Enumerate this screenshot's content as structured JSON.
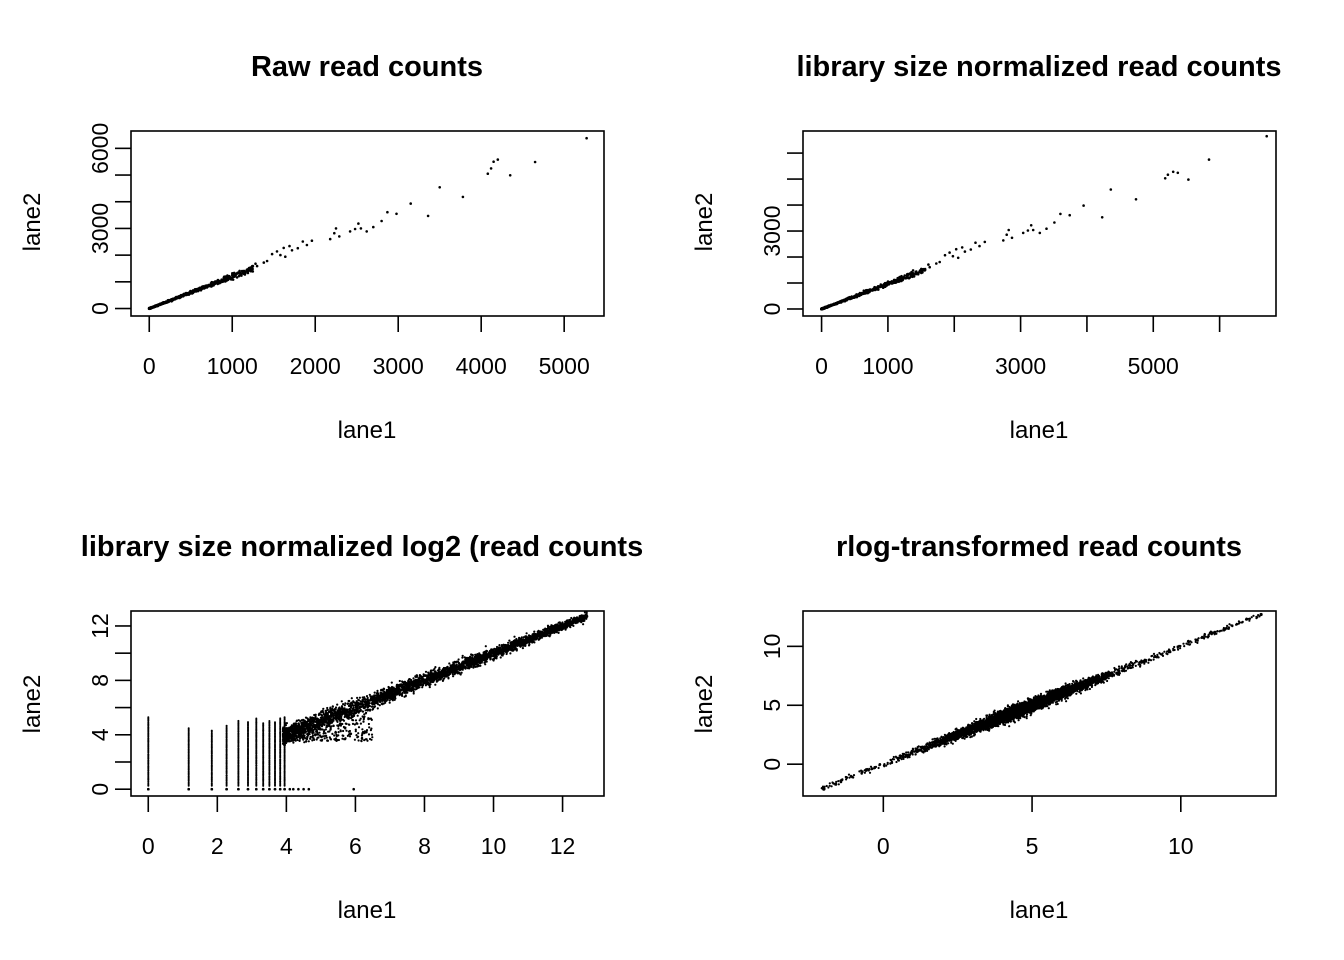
{
  "chart_data": [
    {
      "type": "scatter",
      "title": "Raw read counts",
      "xlabel": "lane1",
      "ylabel": "lane2",
      "xlim": [
        -220,
        5480
      ],
      "ylim": [
        -280,
        6650
      ],
      "x_ticks": [
        0,
        1000,
        2000,
        3000,
        4000,
        5000
      ],
      "x_tick_labels": [
        "0",
        "1000",
        "2000",
        "3000",
        "4000",
        "5000"
      ],
      "y_ticks": [
        0,
        1000,
        2000,
        3000,
        4000,
        5000,
        6000
      ],
      "y_tick_labels": [
        "0",
        "",
        "",
        "3000",
        "",
        "",
        "6000"
      ],
      "points": [
        [
          5270,
          6380
        ],
        [
          4650,
          5490
        ],
        [
          4350,
          4990
        ],
        [
          4200,
          5580
        ],
        [
          4150,
          5500
        ],
        [
          4120,
          5250
        ],
        [
          4080,
          5050
        ],
        [
          3780,
          4180
        ],
        [
          3500,
          4540
        ],
        [
          3360,
          3470
        ],
        [
          3150,
          3930
        ],
        [
          2980,
          3550
        ],
        [
          2870,
          3610
        ],
        [
          2800,
          3280
        ],
        [
          2700,
          3050
        ],
        [
          2620,
          2890
        ],
        [
          2550,
          3000
        ],
        [
          2520,
          3180
        ],
        [
          2480,
          2980
        ],
        [
          2420,
          2890
        ],
        [
          2290,
          2700
        ],
        [
          2250,
          3000
        ],
        [
          2230,
          2820
        ],
        [
          2180,
          2600
        ],
        [
          1960,
          2540
        ],
        [
          1900,
          2380
        ],
        [
          1850,
          2510
        ],
        [
          1790,
          2260
        ],
        [
          1720,
          2180
        ],
        [
          1690,
          2340
        ],
        [
          1640,
          1940
        ],
        [
          1620,
          2270
        ],
        [
          1580,
          2000
        ],
        [
          1540,
          2140
        ],
        [
          1480,
          2040
        ],
        [
          1420,
          1780
        ],
        [
          1380,
          1720
        ],
        [
          1300,
          1590
        ],
        [
          1280,
          1680
        ],
        [
          1240,
          1480
        ]
      ],
      "dense_band": {
        "x_max": 1250,
        "slope": 1.2,
        "spread": 0.06,
        "count": 700
      }
    },
    {
      "type": "scatter",
      "title": "library size normalized read counts",
      "xlabel": "lane1",
      "ylabel": "lane2",
      "xlim": [
        -280,
        6850
      ],
      "ylim": [
        -270,
        6850
      ],
      "x_ticks": [
        0,
        1000,
        2000,
        3000,
        4000,
        5000,
        6000
      ],
      "x_tick_labels": [
        "0",
        "1000",
        "",
        "3000",
        "",
        "5000",
        ""
      ],
      "y_ticks": [
        0,
        1000,
        2000,
        3000,
        4000,
        5000,
        6000
      ],
      "y_tick_labels": [
        "0",
        "",
        "",
        "3000",
        "",
        "",
        ""
      ],
      "points": [
        [
          6710,
          6650
        ],
        [
          5840,
          5750
        ],
        [
          5530,
          4980
        ],
        [
          5370,
          5240
        ],
        [
          5300,
          5280
        ],
        [
          5220,
          5170
        ],
        [
          5180,
          5030
        ],
        [
          4740,
          4220
        ],
        [
          4360,
          4600
        ],
        [
          4230,
          3530
        ],
        [
          3950,
          3980
        ],
        [
          3740,
          3610
        ],
        [
          3600,
          3660
        ],
        [
          3510,
          3330
        ],
        [
          3390,
          3090
        ],
        [
          3290,
          2930
        ],
        [
          3190,
          3040
        ],
        [
          3160,
          3220
        ],
        [
          3110,
          3020
        ],
        [
          3040,
          2930
        ],
        [
          2870,
          2740
        ],
        [
          2820,
          3040
        ],
        [
          2790,
          2860
        ],
        [
          2740,
          2640
        ],
        [
          2460,
          2580
        ],
        [
          2380,
          2420
        ],
        [
          2320,
          2550
        ],
        [
          2250,
          2290
        ],
        [
          2160,
          2210
        ],
        [
          2120,
          2370
        ],
        [
          2060,
          1970
        ],
        [
          2030,
          2300
        ],
        [
          1980,
          2030
        ],
        [
          1930,
          2170
        ],
        [
          1860,
          2070
        ],
        [
          1780,
          1810
        ],
        [
          1730,
          1750
        ],
        [
          1630,
          1610
        ],
        [
          1610,
          1710
        ],
        [
          1560,
          1500
        ]
      ],
      "dense_band": {
        "x_max": 1560,
        "slope": 0.97,
        "spread": 0.06,
        "count": 700
      }
    },
    {
      "type": "scatter",
      "title": "library size normalized log2 (read counts",
      "xlabel": "lane1",
      "ylabel": "lane2",
      "xlim": [
        -0.5,
        13.2
      ],
      "ylim": [
        -0.5,
        13.1
      ],
      "x_ticks": [
        0,
        2,
        4,
        6,
        8,
        10,
        12
      ],
      "x_tick_labels": [
        "0",
        "2",
        "4",
        "6",
        "8",
        "10",
        "12"
      ],
      "y_ticks": [
        0,
        2,
        4,
        6,
        8,
        10,
        12
      ],
      "y_tick_labels": [
        "0",
        "",
        "4",
        "",
        "8",
        "",
        "12"
      ],
      "discrete_x": [
        0,
        1.17,
        1.84,
        2.27,
        2.61,
        2.89,
        3.13,
        3.33,
        3.51,
        3.67,
        3.82,
        3.95
      ],
      "column_tops": [
        5.3,
        4.5,
        4.3,
        4.7,
        5.1,
        5.0,
        5.2,
        4.9,
        5.1,
        5.0,
        5.2,
        5.3
      ],
      "zero_row_x": [
        0,
        1.17,
        1.84,
        2.27,
        2.61,
        2.89,
        3.13,
        3.33,
        3.51,
        3.67,
        3.82,
        3.95,
        4.1,
        4.2,
        4.35,
        4.5,
        4.65,
        5.95
      ],
      "main_cloud": {
        "x_min": 3.9,
        "x_max": 12.7,
        "count": 3800
      },
      "ridge_end": [
        12.7,
        12.7
      ]
    },
    {
      "type": "scatter",
      "title": "rlog-transformed read counts",
      "xlabel": "lane1",
      "ylabel": "lane2",
      "xlim": [
        -2.7,
        13.2
      ],
      "ylim": [
        -2.7,
        13.0
      ],
      "x_ticks": [
        0,
        5,
        10
      ],
      "x_tick_labels": [
        "0",
        "5",
        "10"
      ],
      "y_ticks": [
        0,
        5,
        10
      ],
      "y_tick_labels": [
        "0",
        "5",
        "10"
      ],
      "main_cloud": {
        "x_min": -2.1,
        "x_max": 12.7,
        "count": 4200
      },
      "ridge_end": [
        12.7,
        12.7
      ]
    }
  ]
}
